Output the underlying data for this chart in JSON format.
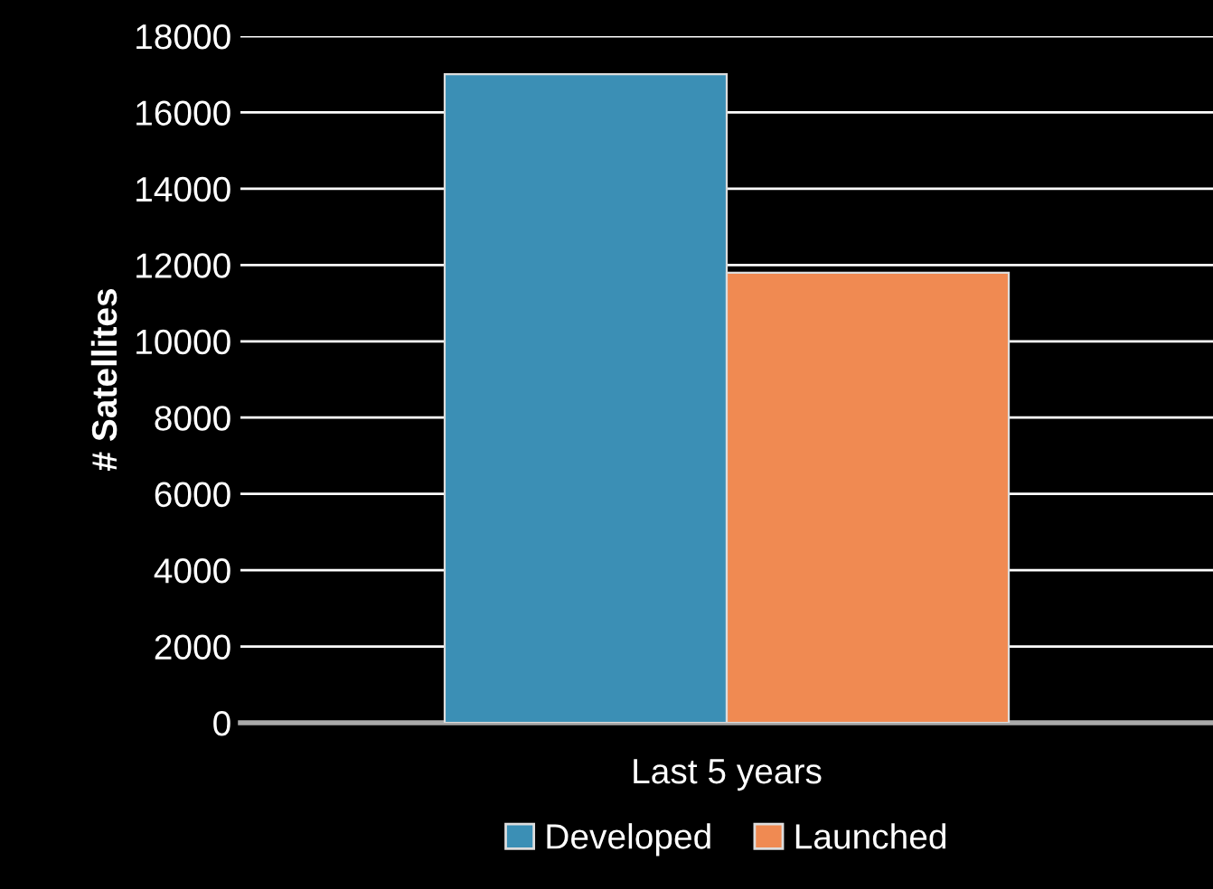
{
  "chart_data": {
    "type": "bar",
    "ylabel": "# Satellites",
    "categories": [
      "Last 5 years"
    ],
    "series": [
      {
        "name": "Developed",
        "color": "#3b8fb5",
        "values": [
          17000
        ]
      },
      {
        "name": "Launched",
        "color": "#f08a52",
        "values": [
          11800
        ]
      }
    ],
    "ylim": [
      0,
      18000
    ],
    "yticks": [
      0,
      2000,
      4000,
      6000,
      8000,
      10000,
      12000,
      14000,
      16000,
      18000
    ],
    "grid": "y",
    "legend": "bottom"
  }
}
